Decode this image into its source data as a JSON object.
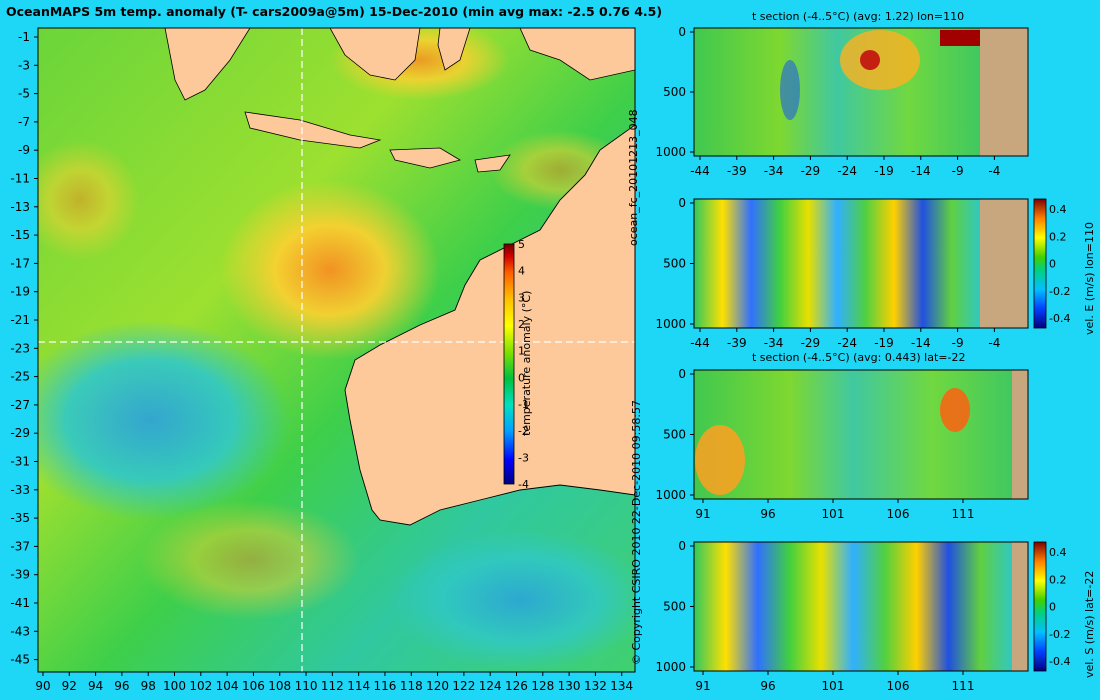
{
  "main_title": "OceanMAPS 5m temp. anomaly (T- cars2009a@5m) 15-Dec-2010 (min avg max: -2.5 0.76 4.5)",
  "side_text_forecast": "ocean_fc_20101213_048",
  "side_text_copyright": "© Copyright CSIRO 2010  22-Dec-2010 09:58:57",
  "colors": {
    "background": "#1ed6f6",
    "land": "#fdc99a",
    "land_section": "#c8a77e",
    "crosshair": "#ffffff",
    "colormap": [
      "#000080",
      "#0000ff",
      "#00a0ff",
      "#00e0c0",
      "#00c040",
      "#80e000",
      "#ffff00",
      "#ffc000",
      "#ff6000",
      "#d00000",
      "#700000"
    ]
  },
  "chart_data": [
    {
      "id": "map",
      "type": "heatmap",
      "title": "OceanMAPS 5m temp. anomaly (T- cars2009a@5m) 15-Dec-2010 (min avg max: -2.5 0.76 4.5)",
      "x_ticks": [
        "90",
        "92",
        "94",
        "96",
        "98",
        "100",
        "102",
        "104",
        "106",
        "108",
        "110",
        "112",
        "114",
        "116",
        "118",
        "120",
        "122",
        "124",
        "126",
        "128",
        "130",
        "132",
        "134"
      ],
      "y_ticks": [
        "-1",
        "-3",
        "-5",
        "-7",
        "-9",
        "-11",
        "-13",
        "-15",
        "-17",
        "-19",
        "-21",
        "-23",
        "-25",
        "-27",
        "-29",
        "-31",
        "-33",
        "-35",
        "-37",
        "-39",
        "-41",
        "-43",
        "-45"
      ],
      "xlim": [
        89.5,
        135
      ],
      "ylim": [
        -45,
        0.2
      ],
      "crosshair": {
        "lon": 110,
        "lat": -22
      },
      "colorbar": {
        "label": "temperature anomaly (°C)",
        "ticks": [
          "5",
          "4",
          "3",
          "2",
          "1",
          "0",
          "-1",
          "-2",
          "-3",
          "-4"
        ],
        "range": [
          -4,
          5
        ]
      }
    },
    {
      "id": "t_section_lon",
      "type": "heatmap",
      "title": "t section (-4..5°C) (avg: 1.22) lon=110",
      "x_ticks": [
        "-44",
        "-39",
        "-34",
        "-29",
        "-24",
        "-19",
        "-14",
        "-9",
        "-4"
      ],
      "y_ticks": [
        "0",
        "500",
        "1000"
      ],
      "xlim": [
        -45,
        0
      ],
      "ylim": [
        1050,
        0
      ]
    },
    {
      "id": "vel_e_section",
      "type": "heatmap",
      "title": "",
      "x_ticks": [
        "-44",
        "-39",
        "-34",
        "-29",
        "-24",
        "-19",
        "-14",
        "-9",
        "-4"
      ],
      "y_ticks": [
        "0",
        "500",
        "1000"
      ],
      "xlim": [
        -45,
        0
      ],
      "ylim": [
        1050,
        0
      ],
      "colorbar": {
        "label": "vel. E (m/s) lon=110",
        "ticks": [
          "0.4",
          "0.2",
          "0",
          "-0.2",
          "-0.4"
        ],
        "range": [
          -0.45,
          0.45
        ]
      }
    },
    {
      "id": "t_section_lat",
      "type": "heatmap",
      "title": "t section (-4..5°C) (avg: 0.443) lat=-22",
      "x_ticks": [
        "91",
        "96",
        "101",
        "106",
        "111"
      ],
      "y_ticks": [
        "0",
        "500",
        "1000"
      ],
      "xlim": [
        89.5,
        115
      ],
      "ylim": [
        1050,
        0
      ]
    },
    {
      "id": "vel_s_section",
      "type": "heatmap",
      "title": "",
      "x_ticks": [
        "91",
        "96",
        "101",
        "106",
        "111"
      ],
      "y_ticks": [
        "0",
        "500",
        "1000"
      ],
      "xlim": [
        89.5,
        115
      ],
      "ylim": [
        1050,
        0
      ],
      "colorbar": {
        "label": "vel. S (m/s) lat=-22",
        "ticks": [
          "0.4",
          "0.2",
          "0",
          "-0.2",
          "-0.4"
        ],
        "range": [
          -0.45,
          0.45
        ]
      }
    }
  ]
}
